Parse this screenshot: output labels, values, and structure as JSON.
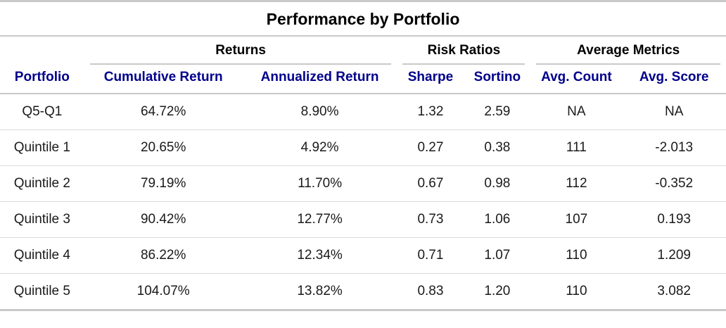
{
  "title": "Performance by Portfolio",
  "colors": {
    "header_text": "#00008B",
    "title_text": "#000000",
    "body_text": "#1a1a1a",
    "heavy_border": "#c9c9c9",
    "light_border": "#dadada",
    "background": "#ffffff"
  },
  "chart_data": {
    "type": "table",
    "title": "Performance by Portfolio",
    "legend_position": "none",
    "grid": "horizontal-row-separators",
    "spanners": [
      {
        "label": "Returns",
        "span": 2
      },
      {
        "label": "Risk Ratios",
        "span": 2
      },
      {
        "label": "Average Metrics",
        "span": 2
      }
    ],
    "columns": [
      "Portfolio",
      "Cumulative Return",
      "Annualized Return",
      "Sharpe",
      "Sortino",
      "Avg. Count",
      "Avg. Score"
    ],
    "rows": [
      [
        "Q5-Q1",
        "64.72%",
        "8.90%",
        "1.32",
        "2.59",
        "NA",
        "NA"
      ],
      [
        "Quintile 1",
        "20.65%",
        "4.92%",
        "0.27",
        "0.38",
        "111",
        "-2.013"
      ],
      [
        "Quintile 2",
        "79.19%",
        "11.70%",
        "0.67",
        "0.98",
        "112",
        "-0.352"
      ],
      [
        "Quintile 3",
        "90.42%",
        "12.77%",
        "0.73",
        "1.06",
        "107",
        "0.193"
      ],
      [
        "Quintile 4",
        "86.22%",
        "12.34%",
        "0.71",
        "1.07",
        "110",
        "1.209"
      ],
      [
        "Quintile 5",
        "104.07%",
        "13.82%",
        "0.83",
        "1.20",
        "110",
        "3.082"
      ]
    ]
  }
}
